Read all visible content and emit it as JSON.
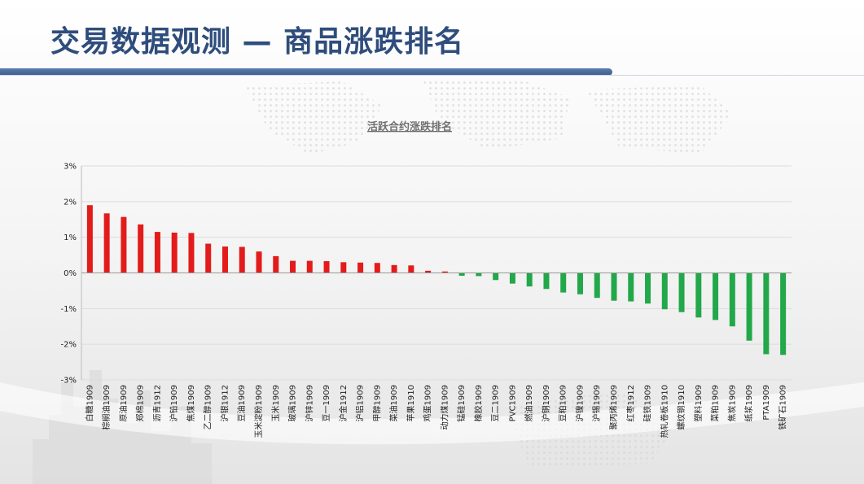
{
  "header": {
    "title": "交易数据观测 — 商品涨跌排名"
  },
  "colors": {
    "up": "#e31b1b",
    "down": "#22a84a",
    "title": "#2f4d7c",
    "bar_accent": "#3b5a8c"
  },
  "chart_data": {
    "type": "bar",
    "title": "活跃合约涨跌排名",
    "xlabel": "",
    "ylabel": "",
    "ylim": [
      -3,
      3
    ],
    "yticks": [
      -3,
      -2,
      -1,
      0,
      1,
      2,
      3
    ],
    "y_unit": "%",
    "grid": true,
    "categories": [
      "白糖1909",
      "棕榈油1909",
      "原油1909",
      "郑棉1909",
      "沥青1912",
      "沪铅1909",
      "焦煤1909",
      "乙二醇1909",
      "沪银1912",
      "豆油1909",
      "玉米淀粉1909",
      "玉米1909",
      "玻璃1909",
      "沪锌1909",
      "豆一1909",
      "沪金1912",
      "沪铝1909",
      "甲醇1909",
      "菜油1909",
      "苹果1910",
      "鸡蛋1909",
      "动力煤1909",
      "锰硅1909",
      "橡胶1909",
      "豆二1909",
      "PVC1909",
      "燃油1909",
      "沪铜1909",
      "豆粕1909",
      "沪镍1909",
      "沪锡1909",
      "聚丙烯1909",
      "红枣1912",
      "硅铁1909",
      "热轧卷板1910",
      "螺纹钢1910",
      "塑料1909",
      "菜粕1909",
      "焦炭1909",
      "纸浆1909",
      "PTA1909",
      "铁矿石1909"
    ],
    "values": [
      1.9,
      1.67,
      1.57,
      1.36,
      1.15,
      1.13,
      1.12,
      0.82,
      0.74,
      0.73,
      0.6,
      0.47,
      0.34,
      0.34,
      0.33,
      0.3,
      0.29,
      0.28,
      0.22,
      0.21,
      0.06,
      0.04,
      -0.08,
      -0.09,
      -0.2,
      -0.3,
      -0.38,
      -0.45,
      -0.55,
      -0.6,
      -0.7,
      -0.78,
      -0.8,
      -0.86,
      -1.02,
      -1.1,
      -1.25,
      -1.32,
      -1.5,
      -1.9,
      -2.28,
      -2.3
    ]
  }
}
